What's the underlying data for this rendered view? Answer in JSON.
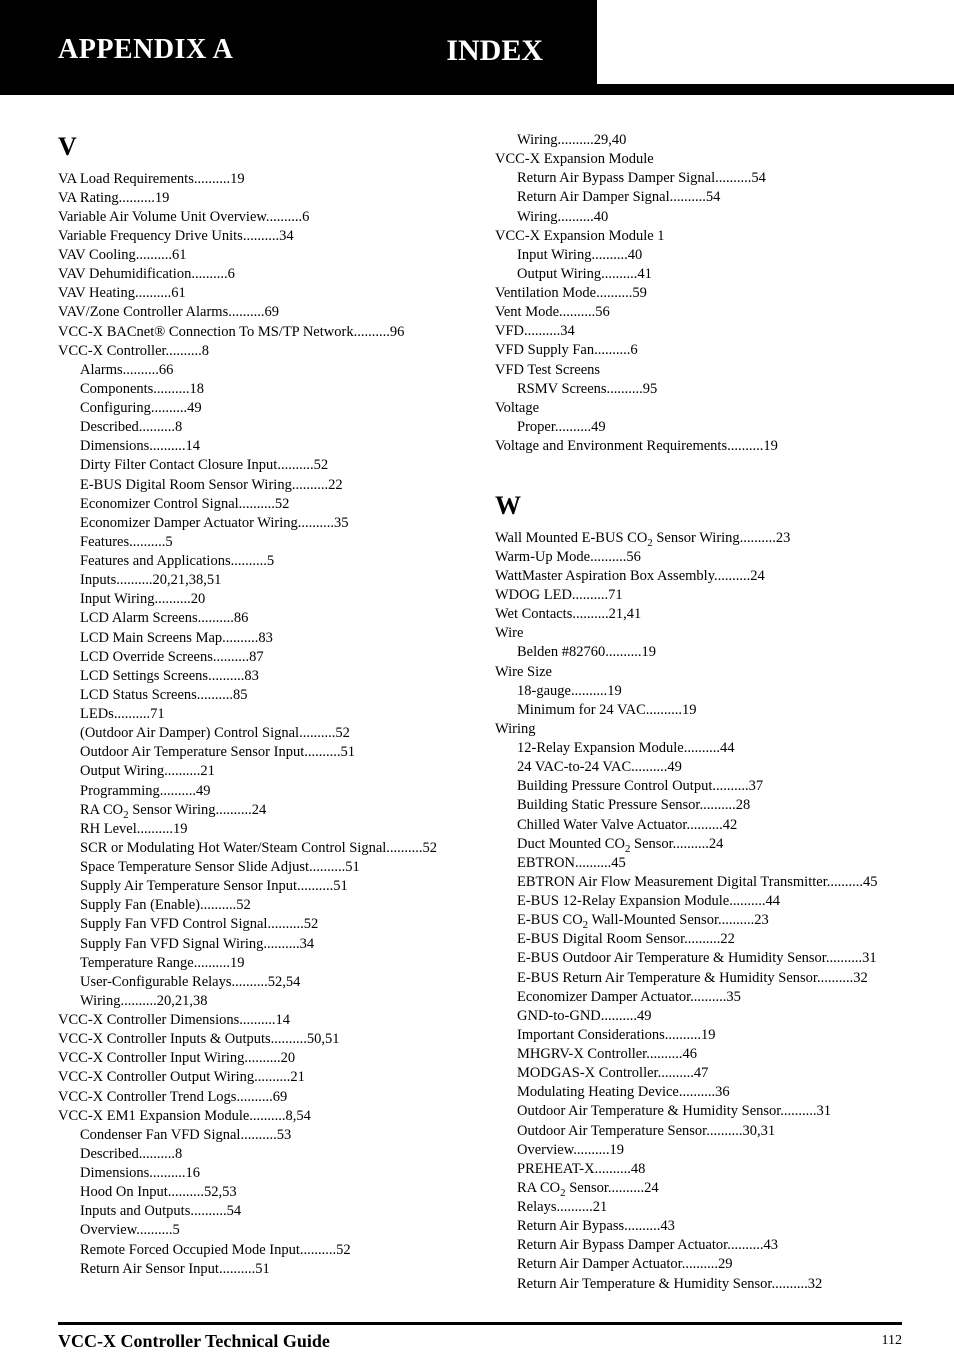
{
  "header": {
    "left_title_line1": "APPENDIX A",
    "right_title": "INDEX"
  },
  "footer": {
    "title": "VCC-X Controller Technical Guide",
    "page": "112"
  },
  "letters": {
    "V": "V",
    "W": "W"
  },
  "subscript_2": "2",
  "text": {
    "wall_mounted_ebus_co": "Wall Mounted E-BUS CO",
    "sensor_wiring_23": " Sensor Wiring..........23",
    "ra_co": "RA CO",
    "sensor_wiring_24": " Sensor Wiring..........24",
    "duct_mounted_co": "Duct Mounted CO",
    "sensor_24": " Sensor..........24",
    "ebus_co": "E-BUS CO",
    "wall_mounted_sensor_23": " Wall-Mounted Sensor..........23",
    "ra_co2": "RA CO",
    "sensor_24b": " Sensor..........24"
  },
  "left_col": [
    {
      "t": "VA Load Requirements",
      "p": "19"
    },
    {
      "t": "VA Rating",
      "p": "19"
    },
    {
      "t": "Variable Air Volume Unit Overview",
      "p": "6"
    },
    {
      "t": "Variable Frequency Drive Units",
      "p": "34"
    },
    {
      "t": "VAV Cooling",
      "p": "61"
    },
    {
      "t": "VAV Dehumidification",
      "p": "6"
    },
    {
      "t": "VAV Heating",
      "p": "61"
    },
    {
      "t": "VAV/Zone Controller Alarms",
      "p": "69"
    },
    {
      "t": "VCC-X BACnet® Connection To MS/TP Network",
      "p": "96"
    },
    {
      "t": "VCC-X Controller",
      "p": "8"
    },
    {
      "t": "Alarms",
      "p": "66",
      "sub": true
    },
    {
      "t": "Components",
      "p": "18",
      "sub": true
    },
    {
      "t": "Configuring",
      "p": "49",
      "sub": true
    },
    {
      "t": "Described",
      "p": "8",
      "sub": true
    },
    {
      "t": "Dimensions",
      "p": "14",
      "sub": true
    },
    {
      "t": "Dirty Filter Contact Closure Input",
      "p": "52",
      "sub": true
    },
    {
      "t": "E-BUS Digital Room Sensor Wiring",
      "p": "22",
      "sub": true
    },
    {
      "t": "Economizer Control Signal",
      "p": "52",
      "sub": true
    },
    {
      "t": "Economizer Damper Actuator Wiring",
      "p": "35",
      "sub": true
    },
    {
      "t": "Features",
      "p": "5",
      "sub": true
    },
    {
      "t": "Features and Applications",
      "p": "5",
      "sub": true
    },
    {
      "t": "Inputs",
      "p": "20,21,38,51",
      "sub": true
    },
    {
      "t": "Input Wiring",
      "p": "20",
      "sub": true
    },
    {
      "t": "LCD Alarm Screens",
      "p": "86",
      "sub": true
    },
    {
      "t": "LCD Main Screens Map",
      "p": "83",
      "sub": true
    },
    {
      "t": "LCD Override Screens",
      "p": "87",
      "sub": true
    },
    {
      "t": "LCD Settings Screens",
      "p": "83",
      "sub": true
    },
    {
      "t": "LCD Status Screens",
      "p": "85",
      "sub": true
    },
    {
      "t": "LEDs",
      "p": "71",
      "sub": true
    },
    {
      "t": "(Outdoor Air Damper) Control Signal",
      "p": "52",
      "sub": true
    },
    {
      "t": "Outdoor Air Temperature Sensor Input",
      "p": "51",
      "sub": true
    },
    {
      "t": "Output Wiring",
      "p": "21",
      "sub": true
    },
    {
      "t": "Programming",
      "p": "49",
      "sub": true
    },
    {
      "t": "__RA_CO2_24__",
      "p": "",
      "sub": true,
      "special": "ra_co2_24"
    },
    {
      "t": "RH Level",
      "p": "19",
      "sub": true
    },
    {
      "t": "SCR or Modulating Hot Water/Steam Control Signal",
      "p": "52",
      "sub": true
    },
    {
      "t": "Space Temperature Sensor Slide Adjust",
      "p": "51",
      "sub": true
    },
    {
      "t": "Supply Air Temperature Sensor Input",
      "p": "51",
      "sub": true
    },
    {
      "t": "Supply Fan (Enable)",
      "p": "52",
      "sub": true
    },
    {
      "t": "Supply Fan VFD Control Signal",
      "p": "52",
      "sub": true
    },
    {
      "t": "Supply Fan VFD Signal Wiring",
      "p": "34",
      "sub": true
    },
    {
      "t": "Temperature Range",
      "p": "19",
      "sub": true
    },
    {
      "t": "User-Configurable Relays",
      "p": "52,54",
      "sub": true
    },
    {
      "t": "Wiring",
      "p": "20,21,38",
      "sub": true
    },
    {
      "t": "VCC-X Controller Dimensions",
      "p": "14"
    },
    {
      "t": "VCC-X Controller Inputs & Outputs",
      "p": "50,51"
    },
    {
      "t": "VCC-X Controller Input Wiring",
      "p": "20"
    },
    {
      "t": "VCC-X Controller Output Wiring",
      "p": "21"
    },
    {
      "t": "VCC-X Controller Trend Logs",
      "p": "69"
    },
    {
      "t": "VCC-X EM1 Expansion Module",
      "p": "8,54"
    },
    {
      "t": "Condenser Fan VFD Signal",
      "p": "53",
      "sub": true
    },
    {
      "t": "Described",
      "p": "8",
      "sub": true
    },
    {
      "t": "Dimensions",
      "p": "16",
      "sub": true
    },
    {
      "t": "Hood On Input",
      "p": "52,53",
      "sub": true
    },
    {
      "t": "Inputs and Outputs",
      "p": "54",
      "sub": true
    },
    {
      "t": "Overview",
      "p": "5",
      "sub": true
    },
    {
      "t": "Remote Forced Occupied Mode Input",
      "p": "52",
      "sub": true
    },
    {
      "t": "Return Air Sensor Input",
      "p": "51",
      "sub": true
    }
  ],
  "right_col_top": [
    {
      "t": "Wiring",
      "p": "29,40",
      "sub": true
    },
    {
      "t": "VCC-X Expansion Module",
      "p": ""
    },
    {
      "t": "Return Air Bypass Damper Signal",
      "p": "54",
      "sub": true
    },
    {
      "t": "Return Air Damper Signal",
      "p": "54",
      "sub": true
    },
    {
      "t": "Wiring",
      "p": "40",
      "sub": true
    },
    {
      "t": "VCC-X Expansion Module 1",
      "p": ""
    },
    {
      "t": "Input Wiring",
      "p": "40",
      "sub": true
    },
    {
      "t": "Output Wiring",
      "p": "41",
      "sub": true
    },
    {
      "t": "Ventilation Mode",
      "p": "59"
    },
    {
      "t": "Vent Mode",
      "p": "56"
    },
    {
      "t": "VFD",
      "p": "34"
    },
    {
      "t": "VFD Supply Fan",
      "p": "6"
    },
    {
      "t": "VFD Test Screens",
      "p": ""
    },
    {
      "t": "RSMV Screens",
      "p": "95",
      "sub": true
    },
    {
      "t": "Voltage",
      "p": ""
    },
    {
      "t": "Proper",
      "p": "49",
      "sub": true
    },
    {
      "t": "Voltage and Environment Requirements",
      "p": "19"
    }
  ],
  "right_col_W": [
    {
      "t": "__WALL_CO2_23__",
      "p": "",
      "special": "wall_co2_23"
    },
    {
      "t": "Warm-Up Mode",
      "p": "56"
    },
    {
      "t": "WattMaster Aspiration Box Assembly",
      "p": "24"
    },
    {
      "t": "WDOG LED",
      "p": "71"
    },
    {
      "t": "Wet Contacts",
      "p": "21,41"
    },
    {
      "t": "Wire",
      "p": ""
    },
    {
      "t": "Belden #82760",
      "p": "19",
      "sub": true
    },
    {
      "t": "Wire Size",
      "p": ""
    },
    {
      "t": "18-gauge",
      "p": "19",
      "sub": true
    },
    {
      "t": "Minimum for 24 VAC",
      "p": "19",
      "sub": true
    },
    {
      "t": "Wiring",
      "p": ""
    },
    {
      "t": "12-Relay Expansion Module",
      "p": "44",
      "sub": true
    },
    {
      "t": "24 VAC-to-24 VAC",
      "p": "49",
      "sub": true
    },
    {
      "t": "Building Pressure Control Output",
      "p": "37",
      "sub": true
    },
    {
      "t": "Building Static Pressure Sensor",
      "p": "28",
      "sub": true
    },
    {
      "t": "Chilled Water Valve Actuator",
      "p": "42",
      "sub": true
    },
    {
      "t": "__DUCT_CO2_24__",
      "p": "",
      "sub": true,
      "special": "duct_co2_24"
    },
    {
      "t": "EBTRON",
      "p": "45",
      "sub": true
    },
    {
      "t": "EBTRON Air Flow Measurement Digital Transmitter",
      "p": "45",
      "sub": true
    },
    {
      "t": "E-BUS 12-Relay Expansion Module",
      "p": "44",
      "sub": true
    },
    {
      "t": "__EBUS_CO2_23__",
      "p": "",
      "sub": true,
      "special": "ebus_co2_23"
    },
    {
      "t": "E-BUS Digital Room Sensor",
      "p": "22",
      "sub": true
    },
    {
      "t": "E-BUS Outdoor Air Temperature & Humidity Sensor",
      "p": "31",
      "sub": true
    },
    {
      "t": "E-BUS Return Air Temperature & Humidity Sensor",
      "p": "32",
      "sub": true
    },
    {
      "t": "Economizer Damper Actuator",
      "p": "35",
      "sub": true
    },
    {
      "t": "GND-to-GND",
      "p": "49",
      "sub": true
    },
    {
      "t": "Important Considerations",
      "p": "19",
      "sub": true
    },
    {
      "t": "MHGRV-X Controller",
      "p": "46",
      "sub": true
    },
    {
      "t": "MODGAS-X Controller",
      "p": "47",
      "sub": true
    },
    {
      "t": "Modulating Heating Device",
      "p": "36",
      "sub": true
    },
    {
      "t": "Outdoor Air Temperature & Humidity Sensor",
      "p": "31",
      "sub": true
    },
    {
      "t": "Outdoor Air Temperature Sensor",
      "p": "30,31",
      "sub": true
    },
    {
      "t": "Overview",
      "p": "19",
      "sub": true
    },
    {
      "t": "PREHEAT-X",
      "p": "48",
      "sub": true
    },
    {
      "t": "__RA_CO2_24b__",
      "p": "",
      "sub": true,
      "special": "ra_co2_24b"
    },
    {
      "t": "Relays",
      "p": "21",
      "sub": true
    },
    {
      "t": "Return Air Bypass",
      "p": "43",
      "sub": true
    },
    {
      "t": "Return Air Bypass Damper Actuator",
      "p": "43",
      "sub": true
    },
    {
      "t": "Return Air Damper Actuator",
      "p": "29",
      "sub": true
    },
    {
      "t": "Return Air Temperature & Humidity Sensor",
      "p": "32",
      "sub": true
    }
  ]
}
